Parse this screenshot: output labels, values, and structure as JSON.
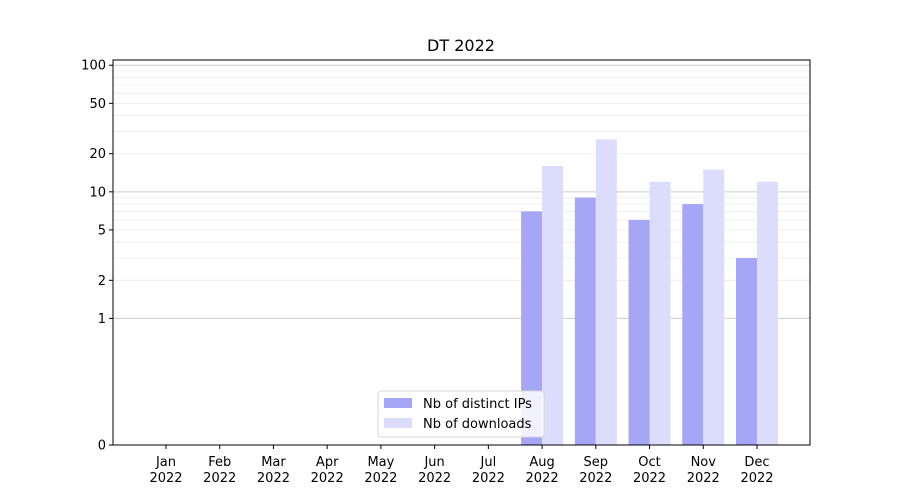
{
  "chart_data": {
    "type": "bar",
    "title": "DT 2022",
    "xlabel": "",
    "ylabel": "",
    "yscale": "symlog",
    "ylim": [
      0,
      110
    ],
    "yticks": [
      "0",
      "1",
      "2",
      "5",
      "10",
      "20",
      "50",
      "100"
    ],
    "categories": [
      [
        "Jan",
        "2022"
      ],
      [
        "Feb",
        "2022"
      ],
      [
        "Mar",
        "2022"
      ],
      [
        "Apr",
        "2022"
      ],
      [
        "May",
        "2022"
      ],
      [
        "Jun",
        "2022"
      ],
      [
        "Jul",
        "2022"
      ],
      [
        "Aug",
        "2022"
      ],
      [
        "Sep",
        "2022"
      ],
      [
        "Oct",
        "2022"
      ],
      [
        "Nov",
        "2022"
      ],
      [
        "Dec",
        "2022"
      ]
    ],
    "series": [
      {
        "name": "Nb of distinct IPs",
        "color": "#a6a6f6",
        "values": [
          0,
          0,
          0,
          0,
          0,
          0,
          0,
          7,
          9,
          6,
          8,
          3
        ]
      },
      {
        "name": "Nb of downloads",
        "color": "#dcdcfc",
        "values": [
          0,
          0,
          0,
          0,
          0,
          0,
          0,
          16,
          26,
          12,
          15,
          12
        ]
      }
    ],
    "grid": true,
    "legend_position": "lower-center"
  }
}
